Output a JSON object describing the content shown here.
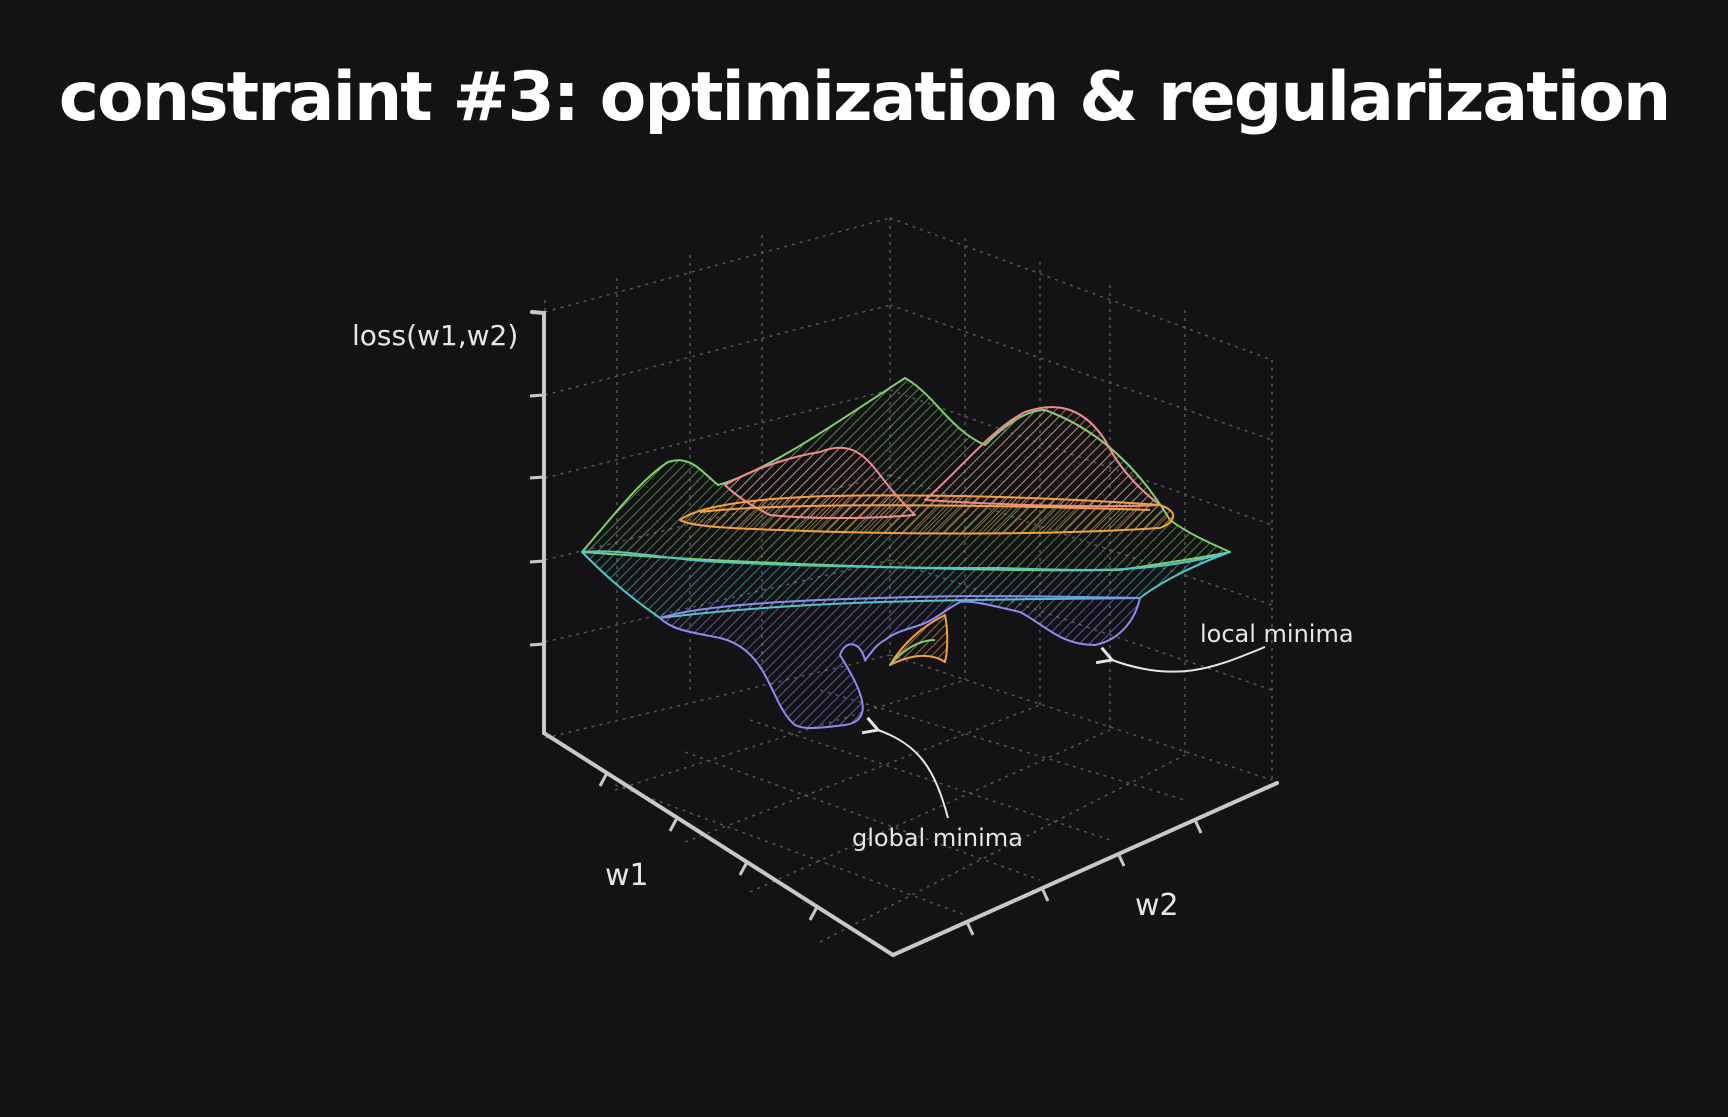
{
  "slide": {
    "title": "constraint #3: optimization & regularization"
  },
  "diagram": {
    "axis_labels": {
      "z": "loss(w1,w2)",
      "x": "w1",
      "y": "w2"
    },
    "annotations": {
      "local": "local minima",
      "global": "global minima"
    },
    "colors": {
      "background": "#131215",
      "axis": "#c8c8c8",
      "grid": "#5a5a5a",
      "green": "#7fcf6a",
      "red": "#f08a90",
      "orange": "#f5a040",
      "teal": "#4fc7c4",
      "blue": "#8c8cf0"
    }
  }
}
